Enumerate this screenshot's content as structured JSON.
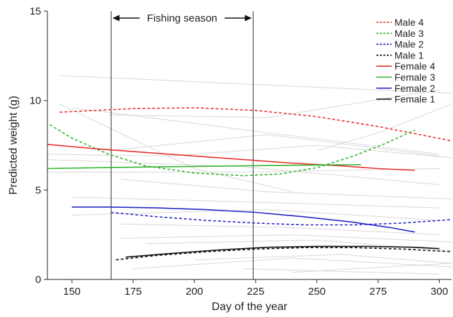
{
  "chart_data": {
    "type": "line",
    "xlabel": "Day of the year",
    "ylabel": "Predicted weight (g)",
    "xlim": [
      140,
      305
    ],
    "ylim": [
      0,
      15
    ],
    "xticks": [
      150,
      175,
      200,
      225,
      250,
      275,
      300
    ],
    "yticks": [
      0,
      5,
      10,
      15
    ],
    "grid": false,
    "legend_position": "top-right",
    "annotation": {
      "text": "Fishing season",
      "start_day": 166,
      "end_day": 224
    },
    "series": [
      {
        "name": "Male 4",
        "style": "dashed",
        "color": "#e8302a",
        "x": [
          145,
          175,
          200,
          225,
          250,
          275,
          305
        ],
        "y": [
          9.35,
          9.55,
          9.6,
          9.45,
          9.1,
          8.55,
          7.75
        ]
      },
      {
        "name": "Male 3",
        "style": "dashed",
        "color": "#2fb42f",
        "x": [
          141,
          150,
          165,
          180,
          200,
          220,
          235,
          250,
          265,
          278,
          290
        ],
        "y": [
          8.65,
          7.9,
          7.0,
          6.35,
          5.95,
          5.8,
          5.9,
          6.25,
          6.9,
          7.6,
          8.35
        ]
      },
      {
        "name": "Male 2",
        "style": "dashed",
        "color": "#2424c8",
        "x": [
          166,
          185,
          205,
          225,
          245,
          265,
          285,
          305
        ],
        "y": [
          3.75,
          3.5,
          3.3,
          3.15,
          3.05,
          3.05,
          3.15,
          3.35
        ]
      },
      {
        "name": "Male 1",
        "style": "dashed",
        "color": "#111111",
        "x": [
          168,
          185,
          205,
          225,
          245,
          265,
          285,
          305
        ],
        "y": [
          1.1,
          1.35,
          1.55,
          1.7,
          1.78,
          1.78,
          1.7,
          1.55
        ]
      },
      {
        "name": "Female 4",
        "style": "solid",
        "color": "#e8302a",
        "x": [
          140,
          160,
          180,
          200,
          220,
          240,
          260,
          275,
          290
        ],
        "y": [
          7.55,
          7.3,
          7.1,
          6.9,
          6.7,
          6.5,
          6.35,
          6.2,
          6.1
        ]
      },
      {
        "name": "Female 3",
        "style": "solid",
        "color": "#2fb42f",
        "x": [
          140,
          170,
          200,
          230,
          268
        ],
        "y": [
          6.2,
          6.27,
          6.32,
          6.37,
          6.42
        ]
      },
      {
        "name": "Female 2",
        "style": "solid",
        "color": "#2424c8",
        "x": [
          150,
          165,
          185,
          205,
          225,
          245,
          265,
          280,
          290
        ],
        "y": [
          4.05,
          4.05,
          4.0,
          3.9,
          3.75,
          3.5,
          3.2,
          2.9,
          2.65
        ]
      },
      {
        "name": "Female 1",
        "style": "solid",
        "color": "#111111",
        "x": [
          172,
          190,
          210,
          230,
          250,
          270,
          290,
          300
        ],
        "y": [
          1.25,
          1.45,
          1.65,
          1.8,
          1.85,
          1.85,
          1.8,
          1.72
        ]
      }
    ],
    "background_series_color": "#d8d8d8",
    "background_series": [
      {
        "x": [
          145,
          305
        ],
        "y": [
          11.4,
          10.4
        ]
      },
      {
        "x": [
          150,
          230,
          300
        ],
        "y": [
          9.6,
          8.2,
          7.0
        ]
      },
      {
        "x": [
          165,
          230,
          300
        ],
        "y": [
          9.2,
          9.05,
          10.6
        ]
      },
      {
        "x": [
          165,
          230,
          300
        ],
        "y": [
          7.2,
          8.1,
          6.9
        ]
      },
      {
        "x": [
          140,
          190,
          250,
          305
        ],
        "y": [
          7.0,
          6.9,
          7.5,
          6.8
        ]
      },
      {
        "x": [
          140,
          220,
          300
        ],
        "y": [
          6.7,
          6.3,
          5.3
        ]
      },
      {
        "x": [
          140,
          220,
          300
        ],
        "y": [
          6.0,
          6.0,
          6.2
        ]
      },
      {
        "x": [
          145,
          200,
          240
        ],
        "y": [
          9.8,
          6.2,
          4.9
        ]
      },
      {
        "x": [
          250,
          275,
          305
        ],
        "y": [
          7.2,
          8.2,
          9.8
        ]
      },
      {
        "x": [
          170,
          230,
          305
        ],
        "y": [
          5.6,
          4.9,
          4.5
        ]
      },
      {
        "x": [
          150,
          230,
          300
        ],
        "y": [
          4.6,
          4.3,
          4.0
        ]
      },
      {
        "x": [
          150,
          230,
          300
        ],
        "y": [
          3.6,
          3.9,
          3.3
        ]
      },
      {
        "x": [
          170,
          240,
          300
        ],
        "y": [
          3.1,
          2.9,
          2.5
        ]
      },
      {
        "x": [
          170,
          240,
          305
        ],
        "y": [
          2.3,
          2.5,
          2.1
        ]
      },
      {
        "x": [
          180,
          250,
          305
        ],
        "y": [
          2.0,
          2.2,
          1.6
        ]
      },
      {
        "x": [
          200,
          260,
          305
        ],
        "y": [
          1.1,
          1.4,
          0.9
        ]
      },
      {
        "x": [
          175,
          240,
          305
        ],
        "y": [
          0.6,
          1.2,
          0.7
        ]
      },
      {
        "x": [
          220,
          300
        ],
        "y": [
          0.6,
          0.3
        ]
      },
      {
        "x": [
          240,
          305
        ],
        "y": [
          0.4,
          0.9
        ]
      }
    ]
  }
}
